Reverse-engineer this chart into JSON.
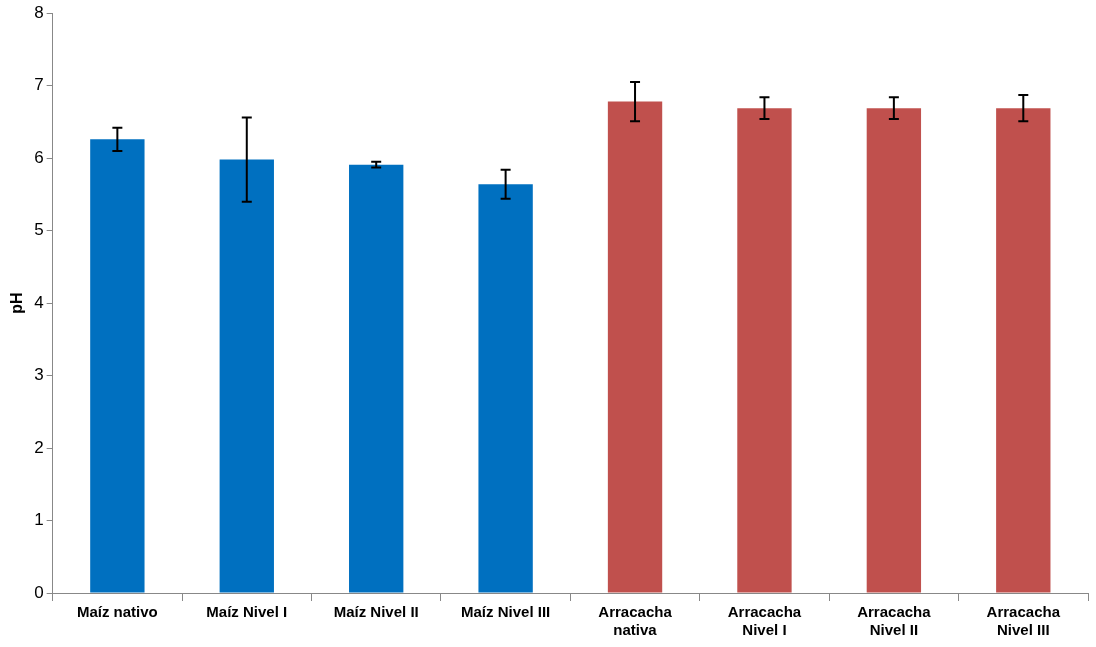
{
  "chart_data": {
    "type": "bar",
    "ylabel": "pH",
    "categories": [
      "Maíz nativo",
      "Maíz Nivel I",
      "Maíz Nivel II",
      "Maíz Nivel III",
      "Arracacha nativa",
      "Arracacha Nivel I",
      "Arracacha Nivel II",
      "Arracacha Nivel III"
    ],
    "values": [
      6.26,
      5.98,
      5.91,
      5.64,
      6.78,
      6.69,
      6.69,
      6.69
    ],
    "errors": [
      0.16,
      0.58,
      0.04,
      0.2,
      0.27,
      0.15,
      0.15,
      0.18
    ],
    "colors": [
      "#0070c0",
      "#0070c0",
      "#0070c0",
      "#0070c0",
      "#c0504d",
      "#c0504d",
      "#c0504d",
      "#c0504d"
    ],
    "ylim": [
      0,
      8
    ],
    "yticks": [
      0,
      1,
      2,
      3,
      4,
      5,
      6,
      7,
      8
    ],
    "grid": false,
    "legend": false
  }
}
